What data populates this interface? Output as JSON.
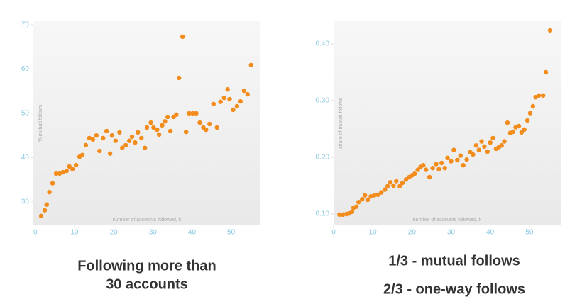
{
  "chart_data": [
    {
      "type": "scatter",
      "color": "#f28c1c",
      "x_label": "number of accounts followed, k",
      "y_label": "% mutual follows",
      "caption": [
        "Following more than",
        "30 accounts"
      ],
      "xlim": [
        -0.5,
        57.5
      ],
      "ylim": [
        24.7,
        70.8
      ],
      "xticks": [
        0,
        10,
        20,
        30,
        40,
        50
      ],
      "yticks": [
        30,
        40,
        50,
        60,
        70
      ],
      "x": [
        1.5,
        2.4,
        2.9,
        3.6,
        4.4,
        5.3,
        6.2,
        7.1,
        8.0,
        8.7,
        9.5,
        10.4,
        11.3,
        12.0,
        12.9,
        13.8,
        14.7,
        15.6,
        16.4,
        17.3,
        18.2,
        19.1,
        19.6,
        20.5,
        21.5,
        22.2,
        23.1,
        24.0,
        24.7,
        25.5,
        26.2,
        27.1,
        28.0,
        28.5,
        29.5,
        30.2,
        31.1,
        31.6,
        32.4,
        33.1,
        33.8,
        34.5,
        35.3,
        36.0,
        36.7,
        37.6,
        38.5,
        39.3,
        40.2,
        41.1,
        42.0,
        42.9,
        43.6,
        44.5,
        45.5,
        46.4,
        47.3,
        48.2,
        49.1,
        49.6,
        50.5,
        51.5,
        52.4,
        53.3,
        54.2,
        55.1
      ],
      "values": [
        26.8,
        28.1,
        29.4,
        32.2,
        34.2,
        36.4,
        36.4,
        36.7,
        37.0,
        38.0,
        37.4,
        38.3,
        40.2,
        40.6,
        42.8,
        44.4,
        44.1,
        45.0,
        41.5,
        44.4,
        46.0,
        40.9,
        45.0,
        43.8,
        45.7,
        42.2,
        42.8,
        43.8,
        44.7,
        43.4,
        45.7,
        44.4,
        42.2,
        46.8,
        47.9,
        46.8,
        46.3,
        45.2,
        47.3,
        48.2,
        49.2,
        46.0,
        49.2,
        49.7,
        58.0,
        67.3,
        45.8,
        50.0,
        50.0,
        50.0,
        47.9,
        46.8,
        46.3,
        47.6,
        52.1,
        46.8,
        52.6,
        53.5,
        55.4,
        53.2,
        50.8,
        51.6,
        52.7,
        55.1,
        54.3,
        60.9
      ]
    },
    {
      "type": "scatter",
      "color": "#f28c1c",
      "x_label": "number of accounts followed, k",
      "y_label": "share of mutual follows",
      "caption": [
        "1/3 - mutual follows",
        "2/3 - one-way follows"
      ],
      "xlim": [
        0,
        58
      ],
      "ylim": [
        0.08,
        0.44
      ],
      "xticks": [
        0,
        10,
        20,
        30,
        40,
        50
      ],
      "yticks": [
        {
          "value": 0.1,
          "label": "0.10"
        },
        {
          "value": 0.2,
          "label": "0.20"
        },
        {
          "value": 0.3,
          "label": "0.30"
        },
        {
          "value": 0.4,
          "label": "0.40"
        }
      ],
      "x": [
        1.5,
        2.4,
        3.3,
        4.0,
        4.7,
        5.1,
        5.8,
        6.4,
        7.3,
        8.0,
        8.7,
        9.5,
        10.4,
        11.3,
        12.2,
        13.1,
        13.8,
        14.5,
        15.3,
        16.0,
        16.9,
        17.6,
        18.5,
        19.3,
        20.0,
        20.7,
        21.5,
        22.2,
        22.9,
        23.6,
        24.5,
        25.3,
        26.2,
        26.9,
        27.6,
        28.4,
        29.1,
        30.0,
        30.7,
        31.6,
        32.4,
        33.1,
        34.0,
        34.9,
        35.6,
        36.4,
        37.1,
        37.8,
        38.5,
        39.3,
        40.0,
        40.7,
        41.5,
        42.2,
        42.9,
        43.6,
        44.4,
        45.1,
        45.8,
        46.5,
        47.3,
        48.0,
        48.7,
        49.5,
        50.2,
        50.9,
        51.6,
        52.4,
        53.5,
        54.2,
        55.3
      ],
      "values": [
        0.099,
        0.099,
        0.1,
        0.101,
        0.104,
        0.111,
        0.113,
        0.121,
        0.126,
        0.133,
        0.125,
        0.131,
        0.133,
        0.134,
        0.138,
        0.143,
        0.149,
        0.156,
        0.15,
        0.158,
        0.149,
        0.155,
        0.161,
        0.165,
        0.168,
        0.171,
        0.178,
        0.183,
        0.186,
        0.178,
        0.165,
        0.181,
        0.188,
        0.179,
        0.19,
        0.181,
        0.199,
        0.193,
        0.213,
        0.195,
        0.203,
        0.186,
        0.196,
        0.209,
        0.205,
        0.221,
        0.213,
        0.228,
        0.219,
        0.21,
        0.226,
        0.234,
        0.215,
        0.218,
        0.221,
        0.228,
        0.261,
        0.243,
        0.245,
        0.253,
        0.255,
        0.244,
        0.249,
        0.265,
        0.278,
        0.29,
        0.306,
        0.309,
        0.309,
        0.35,
        0.424
      ]
    }
  ]
}
